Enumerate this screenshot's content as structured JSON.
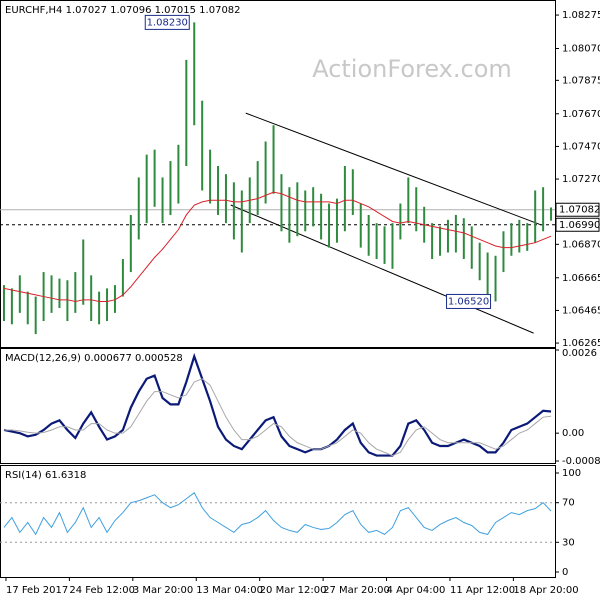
{
  "chart_data": [
    {
      "type": "ohlc",
      "title": "EURCHF,H4 1.07027 1.07096 1.07015 1.07082",
      "watermark": "ActionForex.com",
      "xlim": [
        -0.5,
        69.5
      ],
      "ylim": [
        1.06247,
        1.08355
      ],
      "yticks": [
        1.08275,
        {
          "value": 1.0807,
          "label": "1.08070"
        },
        1.07875,
        {
          "value": 1.0767,
          "label": "1.07670"
        },
        {
          "value": 1.0747,
          "label": "1.07470"
        },
        {
          "value": 1.0727,
          "label": "1.07270"
        },
        {
          "value": 1.0687,
          "label": "1.06870"
        },
        1.06665,
        1.06465,
        1.06265
      ],
      "color": "#2e8b3e",
      "high": [
        1.0662,
        1.066,
        1.0668,
        1.0658,
        1.0655,
        1.067,
        1.0668,
        1.0666,
        1.0665,
        1.067,
        1.069,
        1.0668,
        1.0658,
        1.066,
        1.0662,
        1.0678,
        1.0705,
        1.0728,
        1.0742,
        1.0745,
        1.0728,
        1.0738,
        1.0748,
        1.08,
        1.0823,
        1.0775,
        1.0745,
        1.0735,
        1.073,
        1.0725,
        1.072,
        1.0728,
        1.0738,
        1.075,
        1.076,
        1.073,
        1.0722,
        1.0725,
        1.072,
        1.0722,
        1.0718,
        1.0712,
        1.0715,
        1.0735,
        1.0733,
        1.0712,
        1.0705,
        1.07,
        1.0698,
        1.07,
        1.0712,
        1.0728,
        1.0722,
        1.071,
        1.07,
        1.0698,
        1.0702,
        1.0705,
        1.0703,
        1.0698,
        1.0688,
        1.0682,
        1.068,
        1.0695,
        1.07,
        1.0702,
        1.07,
        1.072,
        1.0722,
        1.07096
      ],
      "low": [
        1.064,
        1.0638,
        1.0645,
        1.0638,
        1.0632,
        1.064,
        1.0645,
        1.0648,
        1.064,
        1.0645,
        1.065,
        1.064,
        1.0638,
        1.064,
        1.0645,
        1.0655,
        1.067,
        1.069,
        1.07,
        1.071,
        1.07,
        1.0705,
        1.0712,
        1.0735,
        1.076,
        1.072,
        1.0712,
        1.0705,
        1.07,
        1.069,
        1.0682,
        1.07,
        1.0705,
        1.0712,
        1.0718,
        1.0695,
        1.0688,
        1.0692,
        1.0695,
        1.0698,
        1.069,
        1.0685,
        1.0688,
        1.0695,
        1.0705,
        1.0685,
        1.068,
        1.0678,
        1.0675,
        1.0672,
        1.069,
        1.07,
        1.0695,
        1.0688,
        1.0678,
        1.068,
        1.0682,
        1.0682,
        1.0678,
        1.0672,
        1.0665,
        1.0656,
        1.0652,
        1.067,
        1.068,
        1.0682,
        1.0683,
        1.0688,
        1.0695,
        1.07015
      ],
      "moving_average": {
        "color": "#d9202a",
        "values": [
          1.066,
          1.0659,
          1.0658,
          1.0657,
          1.0656,
          1.0655,
          1.0654,
          1.0653,
          1.0653,
          1.0652,
          1.0653,
          1.0653,
          1.0652,
          1.0652,
          1.0653,
          1.0656,
          1.0661,
          1.0667,
          1.0673,
          1.0679,
          1.0684,
          1.069,
          1.0696,
          1.0705,
          1.0711,
          1.0713,
          1.0714,
          1.0714,
          1.0714,
          1.0713,
          1.0713,
          1.0714,
          1.0715,
          1.0717,
          1.0719,
          1.0718,
          1.0716,
          1.0714,
          1.0713,
          1.0713,
          1.0713,
          1.0713,
          1.0712,
          1.0714,
          1.0714,
          1.0712,
          1.071,
          1.0707,
          1.0704,
          1.0701,
          1.07,
          1.0701,
          1.07,
          1.0699,
          1.0698,
          1.0697,
          1.0696,
          1.0695,
          1.0694,
          1.0692,
          1.069,
          1.0688,
          1.0686,
          1.0685,
          1.0685,
          1.0686,
          1.0687,
          1.0688,
          1.069,
          1.0692
        ]
      },
      "price_lines": [
        {
          "value": 1.07082,
          "label": "1.07082"
        },
        {
          "value": 1.0699,
          "label": "1.06990"
        }
      ],
      "annotations": [
        {
          "x": 24,
          "value": 1.0823,
          "label": "1.08230"
        },
        {
          "x": 62,
          "value": 1.0652,
          "label": "1.06520"
        }
      ],
      "trendlines": [
        [
          {
            "x": 30.5,
            "y": 1.07674
          },
          {
            "x": 67.8,
            "y": 1.06988
          }
        ],
        [
          {
            "x": 28.6,
            "y": 1.07111
          },
          {
            "x": 66.8,
            "y": 1.06326
          }
        ]
      ]
    },
    {
      "type": "line",
      "title": "MACD(12,26,9) 0.000677 0.000528",
      "ylim": [
        -0.00087,
        0.0026
      ],
      "yticks": [
        0.0026,
        {
          "value": 0,
          "label": "0.00"
        },
        -0.00087
      ],
      "series": [
        {
          "color": "#0b1a78",
          "values": [
            0.0001,
            5e-05,
            0,
            -0.0001,
            -5e-05,
            0.0001,
            0.0003,
            0.0004,
            0.0001,
            -0.00015,
            0.0003,
            0.00065,
            0.0002,
            -0.0002,
            -0.0001,
            0.0001,
            0.0008,
            0.0013,
            0.0017,
            0.0018,
            0.0011,
            0.0009,
            0.0009,
            0.0016,
            0.0024,
            0.0017,
            0.001,
            0.0002,
            -0.0002,
            -0.0004,
            -0.0005,
            -0.0002,
            0.0001,
            0.0004,
            0.0005,
            -0.0001,
            -0.0004,
            -0.0005,
            -0.0006,
            -0.0005,
            -0.0005,
            -0.0004,
            -0.0002,
            0.0001,
            0.0003,
            -0.0003,
            -0.0006,
            -0.0007,
            -0.0007,
            -0.0007,
            -0.0004,
            0.0003,
            0.0004,
            0.0001,
            -0.0003,
            -0.0004,
            -0.0004,
            -0.0003,
            -0.0002,
            -0.0003,
            -0.0004,
            -0.0006,
            -0.0006,
            -0.0003,
            0.0001,
            0.0002,
            0.0003,
            0.0005,
            0.0007,
            0.000677
          ]
        },
        {
          "color": "#a8a8a8",
          "values": [
            0.0001,
            0.0001,
            7e-05,
            3e-05,
            0,
            2e-05,
            0.0001,
            0.0002,
            0.0002,
            0.0001,
            0.0001,
            0.0003,
            0.0003,
            0.0001,
            0,
            0,
            0.0002,
            0.0006,
            0.001,
            0.0013,
            0.0013,
            0.0012,
            0.0011,
            0.0012,
            0.0016,
            0.0017,
            0.0015,
            0.001,
            0.0005,
            0.0001,
            -0.0002,
            -0.0002,
            -0.0001,
            0.0001,
            0.0003,
            0.0002,
            -0.0001,
            -0.0003,
            -0.0004,
            -0.0005,
            -0.0005,
            -0.0004,
            -0.0003,
            -0.0001,
            0.0001,
            0,
            -0.0003,
            -0.0005,
            -0.0006,
            -0.0007,
            -0.0006,
            -0.0002,
            0.0001,
            0.0002,
            0,
            -0.0002,
            -0.0003,
            -0.0003,
            -0.0003,
            -0.0003,
            -0.0003,
            -0.0004,
            -0.0005,
            -0.0004,
            -0.0002,
            0,
            0.0001,
            0.0003,
            0.0005,
            0.000528
          ]
        }
      ]
    },
    {
      "type": "line",
      "title": "RSI(14) 61.6318",
      "ylim": [
        0,
        100
      ],
      "yticks": [
        100,
        70,
        30,
        0
      ],
      "levels": [
        70,
        30
      ],
      "series": [
        {
          "color": "#3fa0e0",
          "values": [
            45,
            55,
            40,
            50,
            38,
            55,
            45,
            60,
            40,
            50,
            65,
            45,
            55,
            40,
            52,
            60,
            70,
            72,
            75,
            78,
            70,
            65,
            68,
            74,
            80,
            65,
            55,
            50,
            45,
            40,
            48,
            50,
            55,
            62,
            52,
            45,
            42,
            40,
            48,
            45,
            43,
            44,
            50,
            58,
            62,
            48,
            40,
            42,
            38,
            45,
            62,
            65,
            55,
            45,
            42,
            48,
            52,
            55,
            50,
            47,
            40,
            38,
            50,
            55,
            60,
            58,
            62,
            64,
            70,
            61.6318
          ]
        }
      ],
      "xticks": [
        {
          "value": 0,
          "label": "17 Feb 2017"
        },
        {
          "value": 8,
          "label": "24 Feb 12:00"
        },
        {
          "value": 16,
          "label": "3 Mar 20:00"
        },
        {
          "value": 24,
          "label": "13 Mar 04:00"
        },
        {
          "value": 32,
          "label": "20 Mar 12:00"
        },
        {
          "value": 40,
          "label": "27 Mar 20:00"
        },
        {
          "value": 48,
          "label": "4 Apr 04:00"
        },
        {
          "value": 56,
          "label": "11 Apr 12:00"
        },
        {
          "value": 64,
          "label": "18 Apr 20:00"
        }
      ]
    }
  ]
}
